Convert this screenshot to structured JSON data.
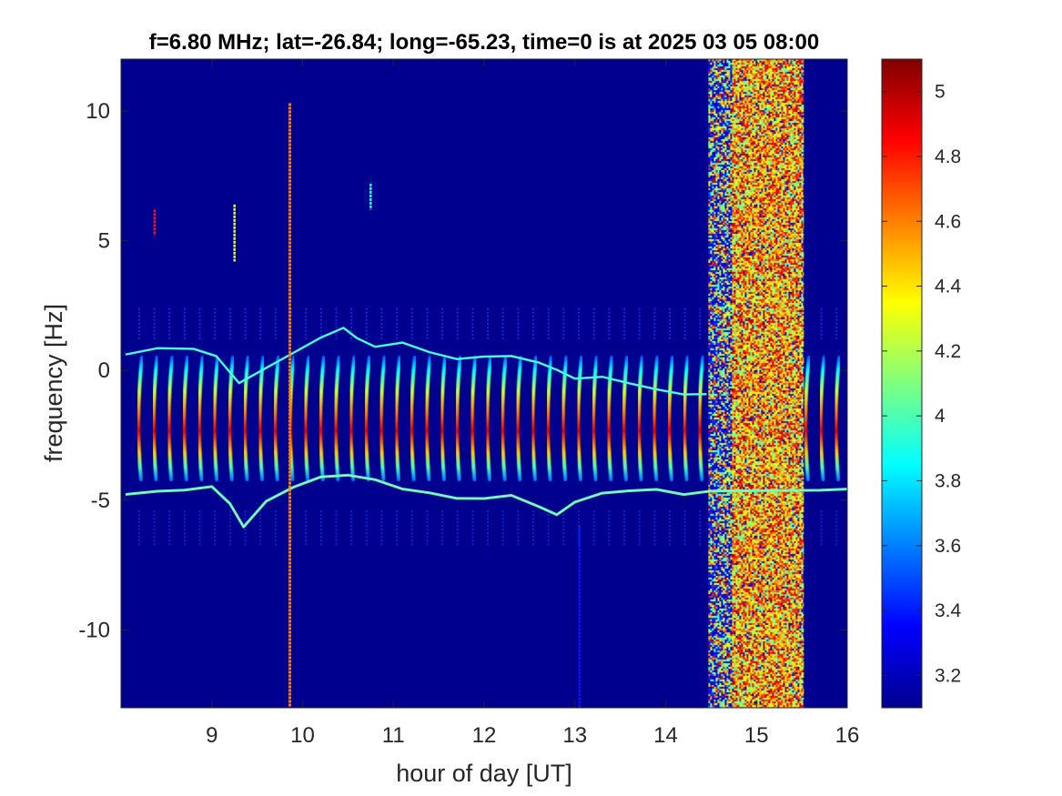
{
  "chart_data": {
    "type": "heatmap",
    "title": "f=6.80 MHz;  lat=-26.84; long=-65.23, time=0 is at 2025 03 05 08:00",
    "xlabel": "hour of day [UT]",
    "ylabel": "frequency [Hz]",
    "xlim": [
      8.0,
      16.0
    ],
    "ylim": [
      -13.0,
      12.0
    ],
    "x_ticks": [
      9,
      10,
      11,
      12,
      13,
      14,
      15,
      16
    ],
    "x_tick_labels": [
      "9",
      "10",
      "11",
      "12",
      "13",
      "14",
      "15",
      "16"
    ],
    "y_ticks": [
      -10,
      -5,
      0,
      5,
      10
    ],
    "y_tick_labels": [
      "-10",
      "-5",
      "0",
      "5",
      "10"
    ],
    "colormap": "jet",
    "background_color": "#00008f",
    "colorbar": {
      "clim": [
        3.1,
        5.1
      ],
      "ticks": [
        3.2,
        3.4,
        3.6,
        3.8,
        4.0,
        4.2,
        4.4,
        4.6,
        4.8,
        5.0
      ],
      "tick_labels": [
        "3.2",
        "3.4",
        "3.6",
        "3.8",
        "4",
        "4.2",
        "4.4",
        "4.6",
        "4.8",
        "5"
      ]
    },
    "features": {
      "periodic_streaks": {
        "start_hour": 8.2,
        "end_hour": 15.9,
        "spacing_hours": 0.167,
        "freq_range": [
          -4.2,
          0.5
        ],
        "peak_value": 4.9
      },
      "upper_trace": [
        [
          8.05,
          0.6
        ],
        [
          8.4,
          0.9
        ],
        [
          8.8,
          0.8
        ],
        [
          9.05,
          0.5
        ],
        [
          9.3,
          -0.5
        ],
        [
          9.6,
          0.1
        ],
        [
          9.9,
          0.7
        ],
        [
          10.2,
          1.3
        ],
        [
          10.45,
          1.6
        ],
        [
          10.6,
          1.2
        ],
        [
          10.8,
          0.9
        ],
        [
          11.1,
          1.1
        ],
        [
          11.4,
          0.7
        ],
        [
          11.7,
          0.4
        ],
        [
          12.0,
          0.5
        ],
        [
          12.3,
          0.6
        ],
        [
          12.6,
          0.3
        ],
        [
          12.8,
          0.0
        ],
        [
          13.0,
          -0.3
        ],
        [
          13.3,
          -0.2
        ],
        [
          13.6,
          -0.5
        ],
        [
          13.9,
          -0.7
        ],
        [
          14.2,
          -0.9
        ],
        [
          14.45,
          -0.9
        ]
      ],
      "lower_trace": [
        [
          8.05,
          -4.8
        ],
        [
          8.4,
          -4.7
        ],
        [
          8.7,
          -4.6
        ],
        [
          9.0,
          -4.5
        ],
        [
          9.2,
          -5.1
        ],
        [
          9.35,
          -6.0
        ],
        [
          9.6,
          -5.0
        ],
        [
          9.9,
          -4.5
        ],
        [
          10.2,
          -4.1
        ],
        [
          10.5,
          -4.0
        ],
        [
          10.8,
          -4.2
        ],
        [
          11.1,
          -4.6
        ],
        [
          11.4,
          -4.7
        ],
        [
          11.7,
          -4.9
        ],
        [
          12.0,
          -4.9
        ],
        [
          12.3,
          -4.8
        ],
        [
          12.6,
          -5.2
        ],
        [
          12.8,
          -5.6
        ],
        [
          13.0,
          -5.1
        ],
        [
          13.3,
          -4.7
        ],
        [
          13.6,
          -4.6
        ],
        [
          13.9,
          -4.6
        ],
        [
          14.2,
          -4.8
        ],
        [
          14.5,
          -4.7
        ],
        [
          15.7,
          -4.6
        ],
        [
          16.0,
          -4.6
        ]
      ],
      "noise_band": {
        "x_range": [
          14.47,
          15.52
        ],
        "inner_x_range": [
          14.72,
          15.5
        ],
        "value_range": [
          3.6,
          5.0
        ]
      },
      "vertical_lines": [
        {
          "x": 9.86,
          "freq_range": [
            -13.0,
            10.3
          ],
          "value": 4.6
        },
        {
          "x": 8.37,
          "freq_range": [
            5.2,
            6.2
          ],
          "value": 4.8
        },
        {
          "x": 9.25,
          "freq_range": [
            4.2,
            6.4
          ],
          "value": 4.3
        },
        {
          "x": 10.75,
          "freq_range": [
            6.2,
            7.2
          ],
          "value": 3.9
        },
        {
          "x": 13.05,
          "freq_range": [
            -13.0,
            -6.0
          ],
          "value": 3.4
        }
      ]
    }
  }
}
